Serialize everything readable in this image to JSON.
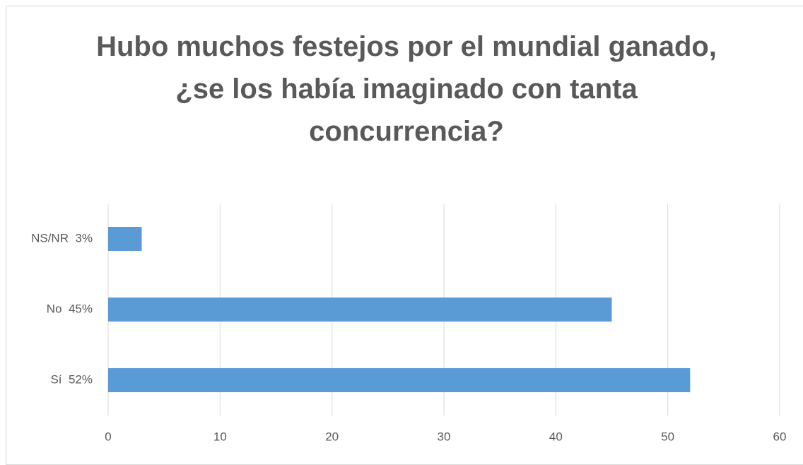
{
  "chart_data": {
    "type": "barh",
    "title": "Hubo muchos festejos por el mundial ganado, ¿se los había imaginado con tanta concurrencia?",
    "categories": [
      "NS/NR  3%",
      "No  45%",
      "Sí  52%"
    ],
    "values": [
      3,
      45,
      52
    ],
    "color": "#5b9bd5",
    "xlim": [
      0,
      60
    ],
    "xticks": [
      0,
      10,
      20,
      30,
      40,
      50,
      60
    ],
    "grid": true
  }
}
